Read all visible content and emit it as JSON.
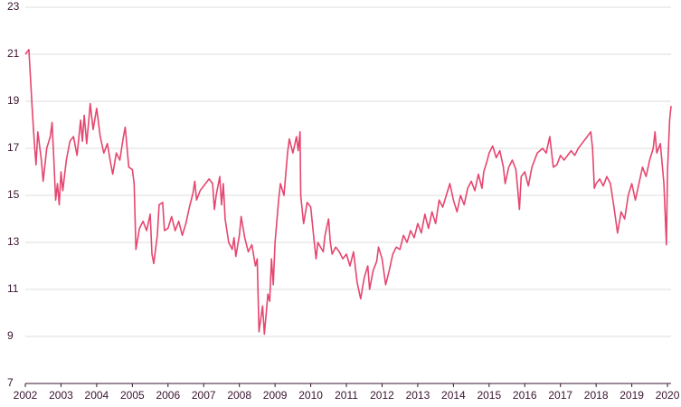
{
  "chart_data": {
    "type": "line",
    "x": [
      2002.0,
      2002.1,
      2002.2,
      2002.25,
      2002.3,
      2002.35,
      2002.45,
      2002.5,
      2002.6,
      2002.7,
      2002.75,
      2002.8,
      2002.85,
      2002.9,
      2002.95,
      2003.0,
      2003.05,
      2003.15,
      2003.25,
      2003.35,
      2003.45,
      2003.55,
      2003.6,
      2003.65,
      2003.72,
      2003.82,
      2003.9,
      2004.0,
      2004.1,
      2004.2,
      2004.3,
      2004.4,
      2004.45,
      2004.55,
      2004.65,
      2004.75,
      2004.8,
      2004.9,
      2005.0,
      2005.05,
      2005.1,
      2005.2,
      2005.3,
      2005.4,
      2005.5,
      2005.55,
      2005.6,
      2005.7,
      2005.75,
      2005.85,
      2005.9,
      2006.0,
      2006.1,
      2006.2,
      2006.3,
      2006.4,
      2006.5,
      2006.6,
      2006.7,
      2006.75,
      2006.8,
      2006.9,
      2007.0,
      2007.15,
      2007.25,
      2007.3,
      2007.35,
      2007.45,
      2007.5,
      2007.55,
      2007.6,
      2007.7,
      2007.8,
      2007.85,
      2007.9,
      2008.0,
      2008.05,
      2008.15,
      2008.25,
      2008.35,
      2008.45,
      2008.5,
      2008.55,
      2008.65,
      2008.7,
      2008.8,
      2008.85,
      2008.9,
      2008.95,
      2009.0,
      2009.1,
      2009.15,
      2009.25,
      2009.35,
      2009.4,
      2009.5,
      2009.6,
      2009.65,
      2009.7,
      2009.72,
      2009.8,
      2009.9,
      2010.0,
      2010.1,
      2010.15,
      2010.2,
      2010.35,
      2010.4,
      2010.5,
      2010.55,
      2010.6,
      2010.7,
      2010.8,
      2010.9,
      2011.0,
      2011.1,
      2011.2,
      2011.3,
      2011.4,
      2011.5,
      2011.6,
      2011.65,
      2011.75,
      2011.85,
      2011.9,
      2012.0,
      2012.1,
      2012.2,
      2012.3,
      2012.4,
      2012.5,
      2012.6,
      2012.7,
      2012.8,
      2012.9,
      2013.0,
      2013.1,
      2013.2,
      2013.3,
      2013.4,
      2013.5,
      2013.6,
      2013.7,
      2013.8,
      2013.9,
      2014.0,
      2014.1,
      2014.2,
      2014.3,
      2014.4,
      2014.5,
      2014.6,
      2014.7,
      2014.8,
      2014.85,
      2014.95,
      2015.0,
      2015.1,
      2015.2,
      2015.3,
      2015.4,
      2015.45,
      2015.55,
      2015.65,
      2015.75,
      2015.8,
      2015.85,
      2015.9,
      2016.0,
      2016.1,
      2016.2,
      2016.35,
      2016.5,
      2016.6,
      2016.7,
      2016.8,
      2016.9,
      2017.0,
      2017.1,
      2017.3,
      2017.4,
      2017.5,
      2017.6,
      2017.7,
      2017.85,
      2017.9,
      2017.95,
      2018.0,
      2018.1,
      2018.2,
      2018.3,
      2018.4,
      2018.5,
      2018.6,
      2018.7,
      2018.8,
      2018.9,
      2019.0,
      2019.1,
      2019.2,
      2019.3,
      2019.4,
      2019.5,
      2019.6,
      2019.65,
      2019.7,
      2019.8,
      2019.9,
      2019.97,
      2020.0,
      2020.06,
      2020.1
    ],
    "series": [
      {
        "color": "#e5466f",
        "values": [
          21.0,
          21.2,
          18.5,
          17.3,
          16.3,
          17.7,
          16.5,
          15.6,
          17.0,
          17.5,
          18.1,
          16.5,
          14.8,
          15.5,
          14.6,
          16.0,
          15.2,
          16.5,
          17.3,
          17.5,
          16.7,
          18.2,
          17.3,
          18.4,
          17.2,
          18.9,
          17.8,
          18.7,
          17.5,
          16.8,
          17.2,
          16.3,
          15.9,
          16.8,
          16.5,
          17.5,
          17.9,
          16.2,
          16.1,
          15.5,
          12.7,
          13.6,
          13.9,
          13.5,
          14.2,
          12.5,
          12.1,
          13.3,
          14.6,
          14.7,
          13.5,
          13.6,
          14.1,
          13.5,
          13.9,
          13.3,
          13.8,
          14.5,
          15.1,
          15.6,
          14.8,
          15.2,
          15.4,
          15.7,
          15.5,
          14.4,
          15.0,
          15.8,
          14.6,
          15.5,
          14.0,
          13.0,
          12.7,
          13.2,
          12.4,
          13.3,
          14.1,
          13.2,
          12.6,
          12.9,
          12.0,
          12.3,
          9.2,
          10.3,
          9.1,
          10.8,
          10.5,
          12.3,
          11.2,
          13.0,
          14.8,
          15.5,
          15.0,
          16.8,
          17.4,
          16.8,
          17.5,
          16.9,
          17.7,
          15.0,
          13.8,
          14.7,
          14.5,
          13.0,
          12.3,
          13.0,
          12.6,
          13.3,
          14.0,
          13.0,
          12.5,
          12.8,
          12.6,
          12.3,
          12.5,
          12.0,
          12.6,
          11.3,
          10.6,
          11.5,
          12.0,
          11.0,
          11.8,
          12.2,
          12.8,
          12.3,
          11.2,
          11.8,
          12.5,
          12.8,
          12.7,
          13.3,
          13.0,
          13.5,
          13.2,
          13.8,
          13.4,
          14.2,
          13.6,
          14.3,
          13.8,
          14.8,
          14.5,
          15.0,
          15.5,
          14.8,
          14.3,
          15.0,
          14.6,
          15.3,
          15.6,
          15.2,
          15.9,
          15.3,
          16.0,
          16.5,
          16.8,
          17.1,
          16.6,
          16.9,
          16.2,
          15.5,
          16.2,
          16.5,
          16.1,
          15.3,
          14.4,
          15.8,
          16.0,
          15.4,
          16.2,
          16.8,
          17.0,
          16.8,
          17.5,
          16.2,
          16.3,
          16.7,
          16.5,
          16.9,
          16.7,
          17.0,
          17.2,
          17.4,
          17.7,
          17.0,
          15.3,
          15.5,
          15.7,
          15.4,
          15.8,
          15.5,
          14.5,
          13.4,
          14.3,
          14.0,
          15.0,
          15.5,
          14.8,
          15.5,
          16.2,
          15.8,
          16.5,
          17.0,
          17.7,
          16.8,
          17.2,
          15.5,
          12.9,
          16.0,
          18.2,
          18.8
        ]
      }
    ],
    "xlim": [
      2002,
      2020.1
    ],
    "xticks": [
      2002,
      2003,
      2004,
      2005,
      2006,
      2007,
      2008,
      2009,
      2010,
      2011,
      2012,
      2013,
      2014,
      2015,
      2016,
      2017,
      2018,
      2019,
      2020
    ],
    "ylim": [
      7,
      23
    ],
    "yticks": [
      7,
      9,
      11,
      13,
      15,
      17,
      19,
      21,
      23
    ],
    "grid": true
  }
}
